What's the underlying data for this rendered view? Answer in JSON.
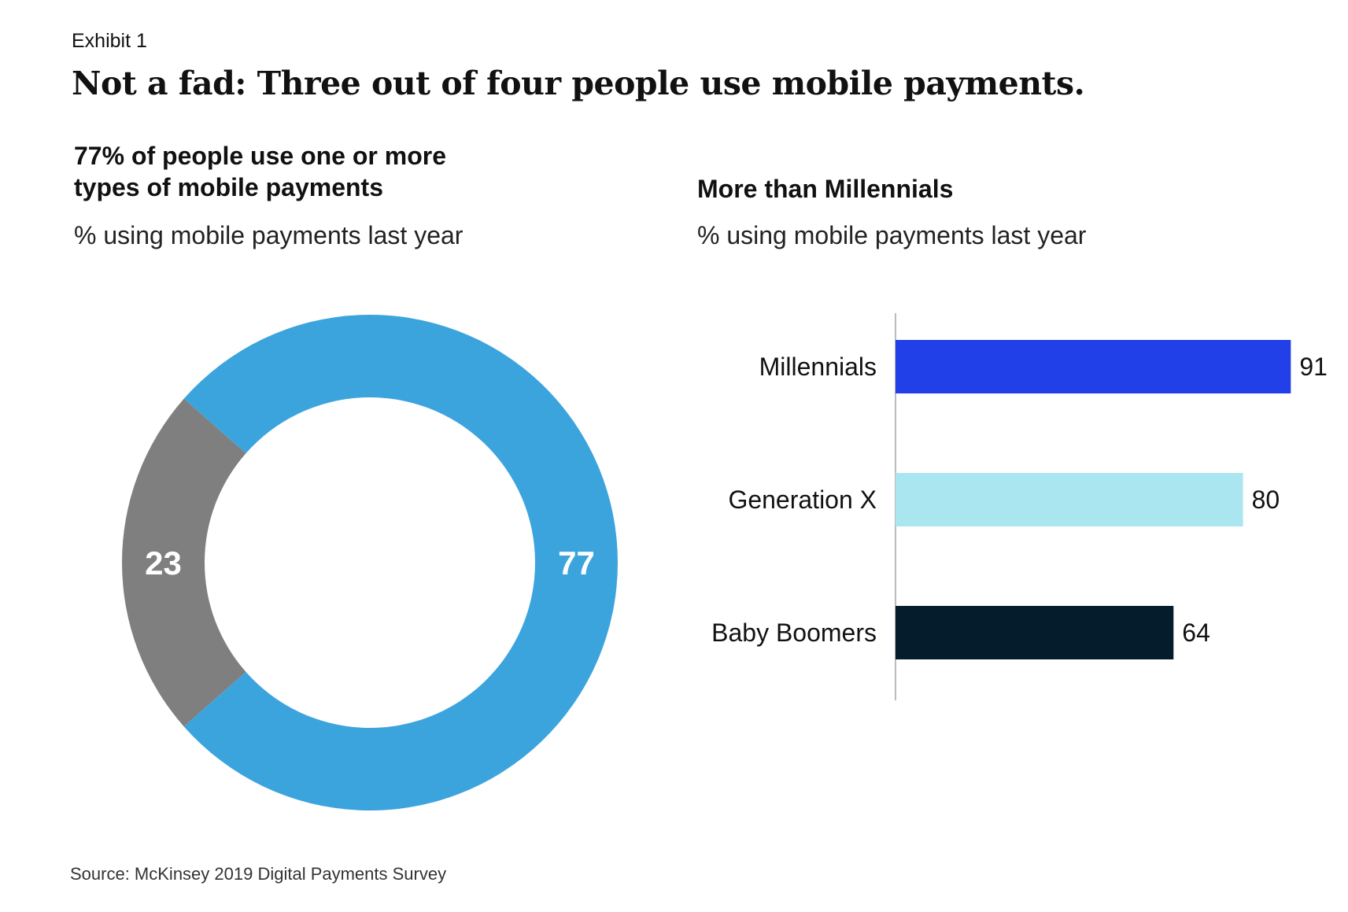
{
  "exhibit_label": "Exhibit 1",
  "title": "Not a fad: Three out of four people use mobile payments.",
  "source": "Source: McKinsey 2019 Digital Payments Survey",
  "colors": {
    "uses": "#3ca4dd",
    "does_not_use": "#7f7f7f",
    "millennials": "#2140e8",
    "generation_x": "#aae6f0",
    "baby_boomers": "#051c2c",
    "axis": "#bbbbbb"
  },
  "chart_data": [
    {
      "type": "pie",
      "title": "77% of people use one or more types of mobile payments",
      "subtitle": "% using mobile payments last year",
      "slices": [
        {
          "value": 77,
          "label": "77",
          "color": "#3ca4dd"
        },
        {
          "value": 23,
          "label": "23",
          "color": "#7f7f7f"
        }
      ]
    },
    {
      "type": "bar",
      "orientation": "horizontal",
      "title": "More than Millennials",
      "subtitle": "% using mobile payments last year",
      "categories": [
        "Millennials",
        "Generation X",
        "Baby Boomers"
      ],
      "values": [
        91,
        80,
        64
      ],
      "colors": [
        "#2140e8",
        "#aae6f0",
        "#051c2c"
      ],
      "xlim": [
        0,
        100
      ],
      "grid": false
    }
  ]
}
